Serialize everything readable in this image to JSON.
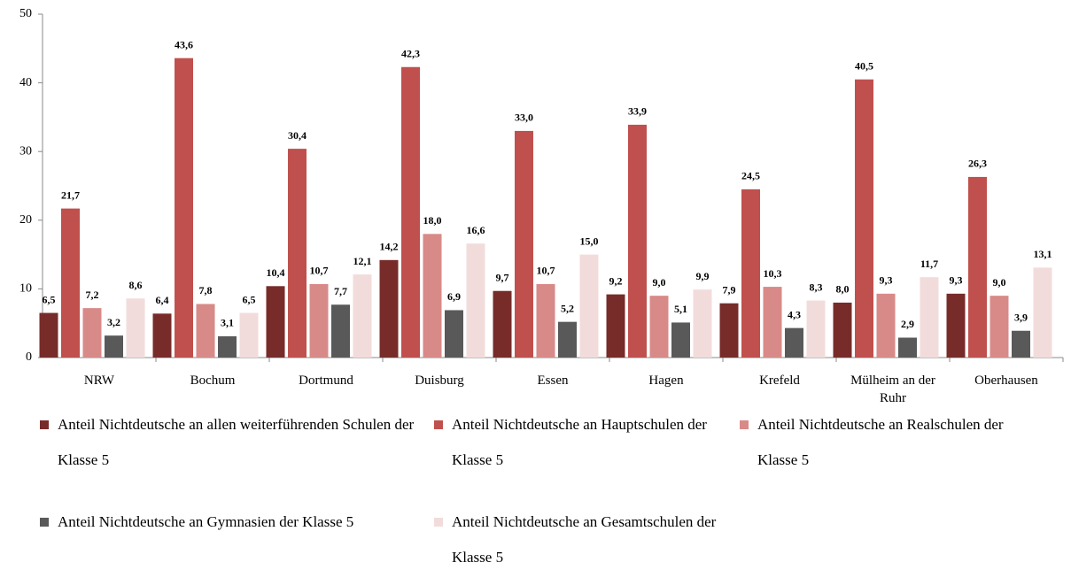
{
  "chart_data": {
    "type": "bar",
    "categories": [
      "NRW",
      "Bochum",
      "Dortmund",
      "Duisburg",
      "Essen",
      "Hagen",
      "Krefeld",
      "Mülheim an der Ruhr",
      "Oberhausen"
    ],
    "series": [
      {
        "name": "Anteil Nichtdeutsche an allen weiterführenden Schulen der Klasse 5",
        "color": "#772c2a",
        "values": [
          6.5,
          6.4,
          10.4,
          14.2,
          9.7,
          9.2,
          7.9,
          8.0,
          9.3
        ],
        "value_labels": [
          "6,5",
          "6,4",
          "10,4",
          "14,2",
          "9,7",
          "9,2",
          "7,9",
          "8,0",
          "9,3"
        ]
      },
      {
        "name": "Anteil Nichtdeutsche an Hauptschulen der Klasse 5",
        "color": "#c0504d",
        "values": [
          21.7,
          43.6,
          30.4,
          42.3,
          33.0,
          33.9,
          24.5,
          40.5,
          26.3
        ],
        "value_labels": [
          "21,7",
          "43,6",
          "30,4",
          "42,3",
          "33,0",
          "33,9",
          "24,5",
          "40,5",
          "26,3"
        ]
      },
      {
        "name": "Anteil Nichtdeutsche an Realschulen der Klasse 5",
        "color": "#d88a88",
        "values": [
          7.2,
          7.8,
          10.7,
          18.0,
          10.7,
          9.0,
          10.3,
          9.3,
          9.0
        ],
        "value_labels": [
          "7,2",
          "7,8",
          "10,7",
          "18,0",
          "10,7",
          "9,0",
          "10,3",
          "9,3",
          "9,0"
        ]
      },
      {
        "name": "Anteil Nichtdeutsche an Gymnasien der Klasse 5",
        "color": "#595959",
        "values": [
          3.2,
          3.1,
          7.7,
          6.9,
          5.2,
          5.1,
          4.3,
          2.9,
          3.9
        ],
        "value_labels": [
          "3,2",
          "3,1",
          "7,7",
          "6,9",
          "5,2",
          "5,1",
          "4,3",
          "2,9",
          "3,9"
        ]
      },
      {
        "name": "Anteil Nichtdeutsche an Ge­samtschulen der Klasse 5",
        "color": "#f2dcdb",
        "values": [
          8.6,
          6.5,
          12.1,
          16.6,
          15.0,
          9.9,
          8.3,
          11.7,
          13.1
        ],
        "value_labels": [
          "8,6",
          "6,5",
          "12,1",
          "16,6",
          "15,0",
          "9,9",
          "8,3",
          "11,7",
          "13,1"
        ]
      }
    ],
    "ylim": [
      0,
      50
    ],
    "yticks": [
      0,
      10,
      20,
      30,
      40,
      50
    ],
    "grid": false
  }
}
